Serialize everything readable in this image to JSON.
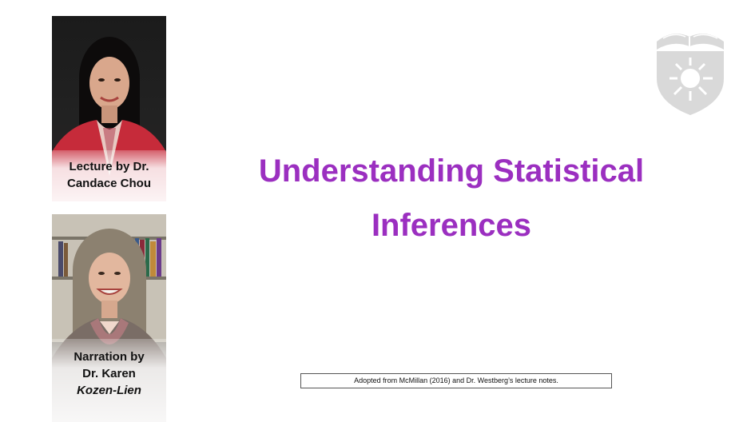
{
  "slide": {
    "title_line1": "Understanding Statistical",
    "title_line2": "Inferences",
    "footnote": "Adopted from McMillan (2016) and Dr. Westberg’s lecture notes."
  },
  "presenters": {
    "lecturer": {
      "caption_line1": "Lecture by Dr.",
      "caption_line2": "Candace Chou"
    },
    "narrator": {
      "caption_line1": "Narration by",
      "caption_line2": "Dr. Karen",
      "caption_line3": "Kozen-Lien"
    }
  },
  "colors": {
    "title": "#9b2fc0",
    "logo": "#d9d9d9"
  },
  "icons": {
    "logo": "university-shield-logo"
  }
}
